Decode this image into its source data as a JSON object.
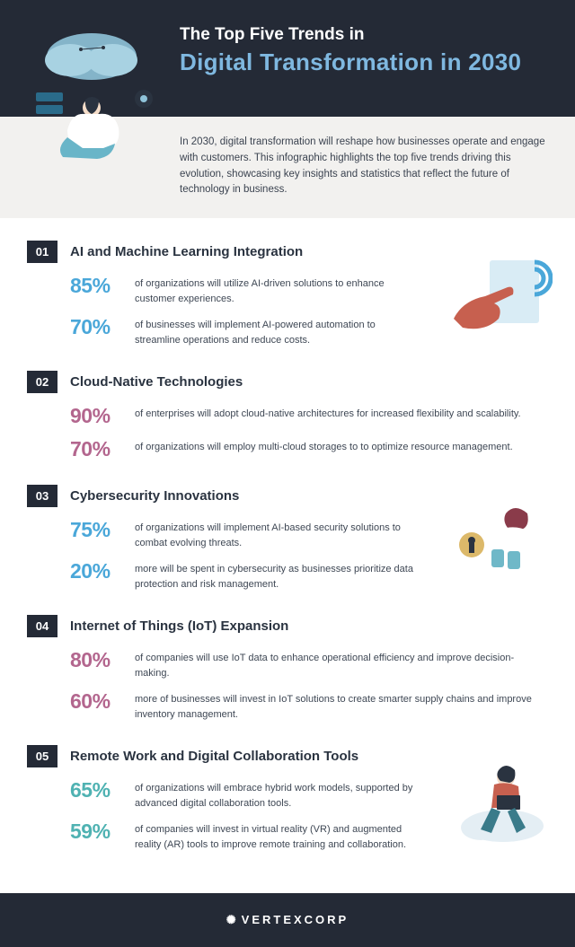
{
  "hero": {
    "line1": "The Top Five Trends in",
    "line2": "Digital Transformation in 2030"
  },
  "intro": "In 2030, digital transformation will reshape how businesses operate and engage with customers. This infographic highlights the top five trends driving this evolution, showcasing key insights and statistics that reflect the future of technology in business.",
  "trends": [
    {
      "num": "01",
      "title": "AI and Machine Learning Integration",
      "color_class": "c-blue",
      "art": true,
      "full": false,
      "stats": [
        {
          "pct": "85%",
          "desc": "of organizations will utilize AI-driven solutions to enhance customer experiences."
        },
        {
          "pct": "70%",
          "desc": "of businesses will implement AI-powered automation to streamline operations and reduce costs."
        }
      ]
    },
    {
      "num": "02",
      "title": "Cloud-Native Technologies",
      "color_class": "c-pink",
      "art": false,
      "full": true,
      "stats": [
        {
          "pct": "90%",
          "desc": "of enterprises will adopt cloud-native architectures for increased flexibility and scalability."
        },
        {
          "pct": "70%",
          "desc": "of organizations will employ multi-cloud storages to to optimize resource management."
        }
      ]
    },
    {
      "num": "03",
      "title": "Cybersecurity Innovations",
      "color_class": "c-blue",
      "art": true,
      "full": false,
      "stats": [
        {
          "pct": "75%",
          "desc": "of organizations will implement AI-based security solutions to combat evolving threats."
        },
        {
          "pct": "20%",
          "desc": "more will be spent in cybersecurity as businesses prioritize data protection and risk management."
        }
      ]
    },
    {
      "num": "04",
      "title": "Internet of Things (IoT) Expansion",
      "color_class": "c-pink",
      "art": false,
      "full": true,
      "stats": [
        {
          "pct": "80%",
          "desc": "of companies will use IoT data to enhance operational efficiency and improve decision-making."
        },
        {
          "pct": "60%",
          "desc": "more of businesses will invest in IoT solutions to create smarter supply chains and improve inventory management."
        }
      ]
    },
    {
      "num": "05",
      "title": "Remote Work and Digital Collaboration Tools",
      "color_class": "c-teal",
      "art": true,
      "full": false,
      "stats": [
        {
          "pct": "65%",
          "desc": "of organizations will embrace hybrid work models, supported by advanced digital collaboration tools."
        },
        {
          "pct": "59%",
          "desc": "of companies will invest in virtual reality (VR) and augmented reality (AR) tools to improve remote training and collaboration."
        }
      ]
    }
  ],
  "footer": {
    "brand": "VERTEXCORP"
  },
  "palette": {
    "dark": "#242a36",
    "blue": "#4aa7d9",
    "pink": "#b3668e",
    "teal": "#4fb2b2",
    "intro_bg": "#f2f1ef"
  }
}
